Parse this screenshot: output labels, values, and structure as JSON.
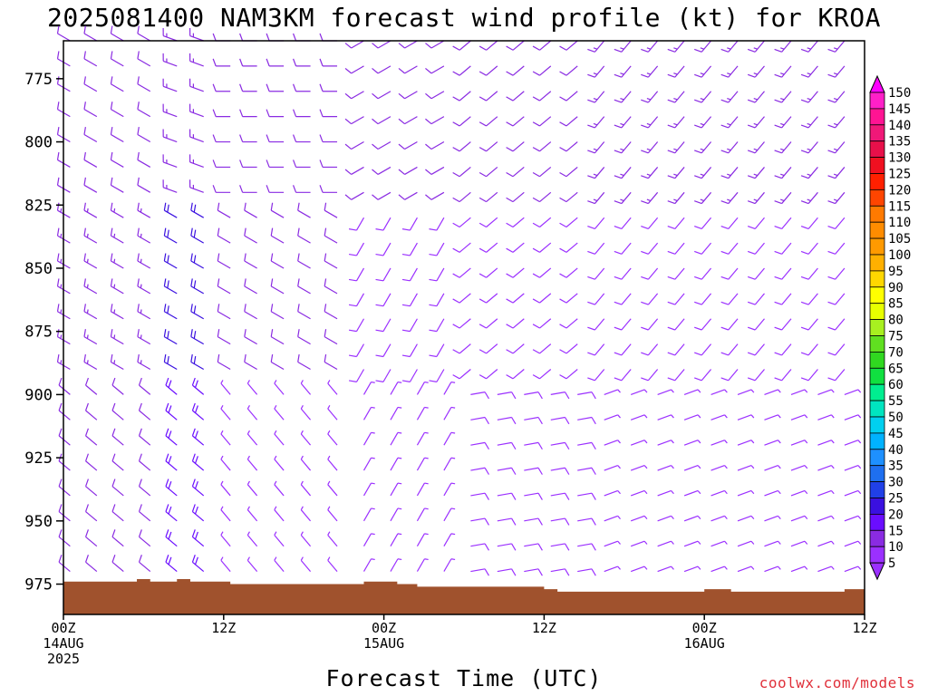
{
  "title": "2025081400 NAM3KM forecast wind profile (kt) for KROA",
  "xlabel": "Forecast Time (UTC)",
  "credit": "coolwx.com/models",
  "chart_data": {
    "type": "wind_profile_barbs",
    "title": "2025081400 NAM3KM forecast wind profile (kt) for KROA",
    "xlabel": "Forecast Time (UTC)",
    "ylabel": "",
    "y_axis": {
      "ticks": [
        775,
        800,
        825,
        850,
        875,
        900,
        925,
        950,
        975
      ],
      "range": [
        760,
        987
      ],
      "reversed": true
    },
    "x_axis": {
      "range_hours": [
        0,
        60
      ],
      "ticks": [
        {
          "hour": 0,
          "label": [
            "00Z",
            "14AUG",
            "2025"
          ]
        },
        {
          "hour": 12,
          "label": [
            "12Z"
          ]
        },
        {
          "hour": 24,
          "label": [
            "00Z",
            "15AUG"
          ]
        },
        {
          "hour": 36,
          "label": [
            "12Z"
          ]
        },
        {
          "hour": 48,
          "label": [
            "00Z",
            "16AUG"
          ]
        },
        {
          "hour": 60,
          "label": [
            "12Z"
          ]
        }
      ]
    },
    "levels_mb": [
      760,
      770,
      780,
      790,
      800,
      810,
      820,
      830,
      840,
      850,
      860,
      870,
      880,
      890,
      900,
      910,
      920,
      930,
      940,
      950,
      960,
      970
    ],
    "surface_pressure": {
      "hours": [
        0,
        5,
        5.5,
        6.5,
        8.5,
        9.5,
        12.5,
        20.5,
        22.5,
        25,
        26.5,
        36,
        37,
        40,
        48,
        50,
        58.5,
        60
      ],
      "pressure": [
        974,
        974,
        973,
        974,
        973,
        974,
        975,
        975,
        974,
        975,
        976,
        977,
        978,
        978,
        977,
        978,
        977,
        978
      ]
    },
    "terrain_color": "#a0522d",
    "barb_colormap": [
      {
        "speed": 5,
        "color": "#9b30ff"
      },
      {
        "speed": 10,
        "color": "#8a2be2"
      },
      {
        "speed": 15,
        "color": "#6a0dff"
      },
      {
        "speed": 20,
        "color": "#3a10e0"
      },
      {
        "speed": 25,
        "color": "#2040e8"
      },
      {
        "speed": 30,
        "color": "#1e6ff0"
      },
      {
        "speed": 35,
        "color": "#1e90ff"
      },
      {
        "speed": 40,
        "color": "#00b2ff"
      },
      {
        "speed": 45,
        "color": "#00d0f0"
      },
      {
        "speed": 50,
        "color": "#00e5c0"
      },
      {
        "speed": 55,
        "color": "#00ee90"
      },
      {
        "speed": 60,
        "color": "#10e040"
      },
      {
        "speed": 65,
        "color": "#30d820"
      },
      {
        "speed": 70,
        "color": "#60e020"
      },
      {
        "speed": 75,
        "color": "#a8f020"
      },
      {
        "speed": 80,
        "color": "#e8ff00"
      },
      {
        "speed": 85,
        "color": "#ffff00"
      },
      {
        "speed": 90,
        "color": "#ffd700"
      },
      {
        "speed": 95,
        "color": "#ffb000"
      },
      {
        "speed": 100,
        "color": "#ff9a00"
      },
      {
        "speed": 105,
        "color": "#ff8c00"
      },
      {
        "speed": 110,
        "color": "#ff7a00"
      },
      {
        "speed": 115,
        "color": "#ff4500"
      },
      {
        "speed": 120,
        "color": "#ff2000"
      },
      {
        "speed": 125,
        "color": "#f01020"
      },
      {
        "speed": 130,
        "color": "#e8104a"
      },
      {
        "speed": 135,
        "color": "#f01878"
      },
      {
        "speed": 140,
        "color": "#ff1493"
      },
      {
        "speed": 145,
        "color": "#ff20c8"
      },
      {
        "speed": 150,
        "color": "#ff00ff"
      }
    ],
    "colorbar_ticks": [
      150,
      145,
      140,
      135,
      130,
      125,
      120,
      115,
      110,
      105,
      100,
      95,
      90,
      85,
      80,
      75,
      70,
      65,
      60,
      55,
      50,
      45,
      40,
      35,
      30,
      25,
      20,
      15,
      10,
      5
    ],
    "wind_field": {
      "time_step_hours": 2,
      "note_keys": "segments are [start_hour, end_hour, direction_deg_from, speed_kt]",
      "upper": [
        [
          0,
          8,
          300,
          12
        ],
        [
          8,
          12,
          290,
          14
        ],
        [
          12,
          22,
          270,
          10
        ],
        [
          22,
          30,
          240,
          10
        ],
        [
          30,
          40,
          230,
          12
        ],
        [
          40,
          60,
          220,
          14
        ]
      ],
      "middle": [
        [
          0,
          8,
          300,
          13
        ],
        [
          8,
          12,
          300,
          20
        ],
        [
          12,
          22,
          300,
          10
        ],
        [
          22,
          30,
          210,
          8
        ],
        [
          30,
          40,
          230,
          9
        ],
        [
          40,
          60,
          220,
          8
        ]
      ],
      "lower": [
        [
          0,
          8,
          310,
          12
        ],
        [
          8,
          12,
          310,
          18
        ],
        [
          12,
          22,
          320,
          7
        ],
        [
          22,
          30,
          30,
          6
        ],
        [
          30,
          40,
          80,
          8
        ],
        [
          40,
          60,
          70,
          7
        ]
      ]
    }
  }
}
